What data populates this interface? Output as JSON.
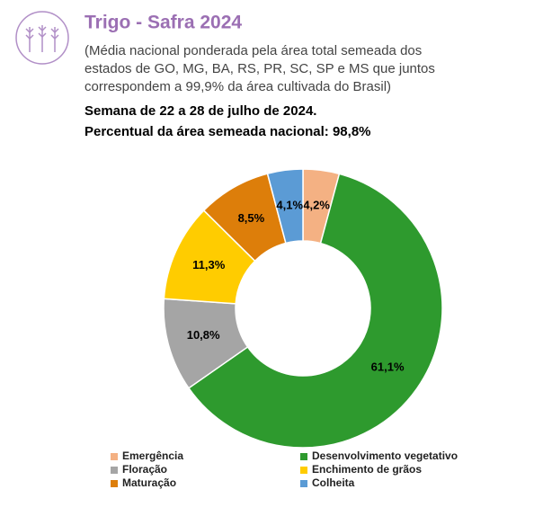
{
  "chart_data": {
    "type": "donut",
    "title": "Trigo - Safra 2024",
    "subtitle": [
      "(Média nacional ponderada pela área total semeada dos",
      "estados de GO, MG, BA, RS, PR, SC, SP e MS que juntos",
      "correspondem a 99,9% da área cultivada do Brasil)"
    ],
    "week": "Semana de 22 a 28 de julho de 2024.",
    "coverage": "Percentual da área semeada nacional: 98,8%",
    "categories": [
      "Emergência",
      "Desenvolvimento vegetativo",
      "Floração",
      "Enchimento de grãos",
      "Maturação",
      "Colheita"
    ],
    "values": [
      4.2,
      61.1,
      10.8,
      11.3,
      8.5,
      4.1
    ],
    "value_labels": [
      "4,2%",
      "61,1%",
      "10,8%",
      "11,3%",
      "8,5%",
      "4,1%"
    ],
    "colors": [
      "#f4b183",
      "#2e9a2e",
      "#a5a5a5",
      "#ffcc00",
      "#dd7e0a",
      "#5b9bd5"
    ],
    "legend": "bottom"
  }
}
